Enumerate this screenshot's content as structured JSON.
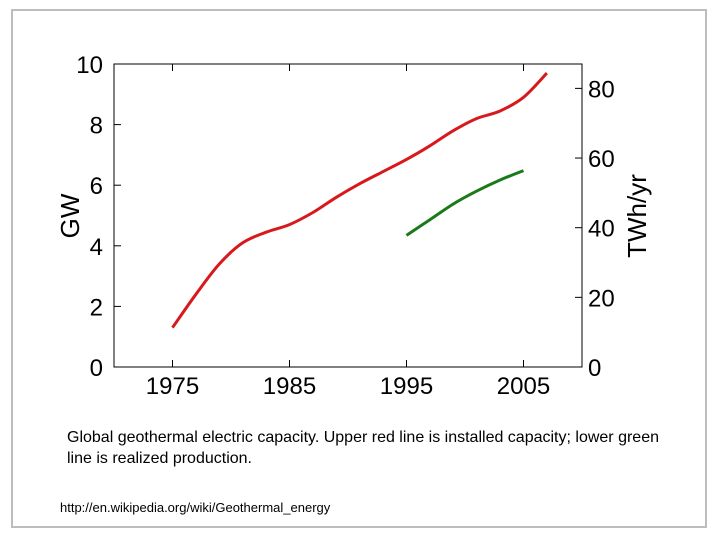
{
  "chart_data": {
    "type": "line",
    "x_ticks": [
      "1975",
      "1985",
      "1995",
      "2005"
    ],
    "x_tick_values": [
      1975,
      1985,
      1995,
      2005
    ],
    "xlim": [
      1970,
      2010
    ],
    "y_left": {
      "label": "GW",
      "lim": [
        0,
        10
      ],
      "ticks": [
        "0",
        "2",
        "4",
        "6",
        "8",
        "10"
      ],
      "tick_values": [
        0,
        2,
        4,
        6,
        8,
        10
      ]
    },
    "y_right": {
      "label": "TWh/yr",
      "lim": [
        0,
        87
      ],
      "ticks": [
        "0",
        "20",
        "40",
        "60",
        "80"
      ],
      "tick_values": [
        0,
        20,
        40,
        60,
        80
      ]
    },
    "grid": false,
    "series": [
      {
        "axis": "left",
        "color": "#d7191c",
        "x": [
          1975,
          1977,
          1979,
          1981,
          1983,
          1985,
          1987,
          1989,
          1991,
          1993,
          1995,
          1997,
          1999,
          2001,
          2003,
          2005,
          2007
        ],
        "y": [
          1.3,
          2.4,
          3.4,
          4.1,
          4.45,
          4.7,
          5.1,
          5.6,
          6.05,
          6.45,
          6.85,
          7.3,
          7.8,
          8.2,
          8.45,
          8.9,
          9.7
        ]
      },
      {
        "axis": "right",
        "color": "#1a7a1a",
        "x": [
          1995,
          1997,
          1999,
          2001,
          2003,
          2005
        ],
        "y": [
          37.8,
          42.3,
          46.8,
          50.5,
          53.7,
          56.4
        ]
      }
    ]
  },
  "caption": "Global geothermal electric capacity. Upper red line is installed capacity; lower green line is realized production.",
  "source": "http://en.wikipedia.org/wiki/Geothermal_energy"
}
